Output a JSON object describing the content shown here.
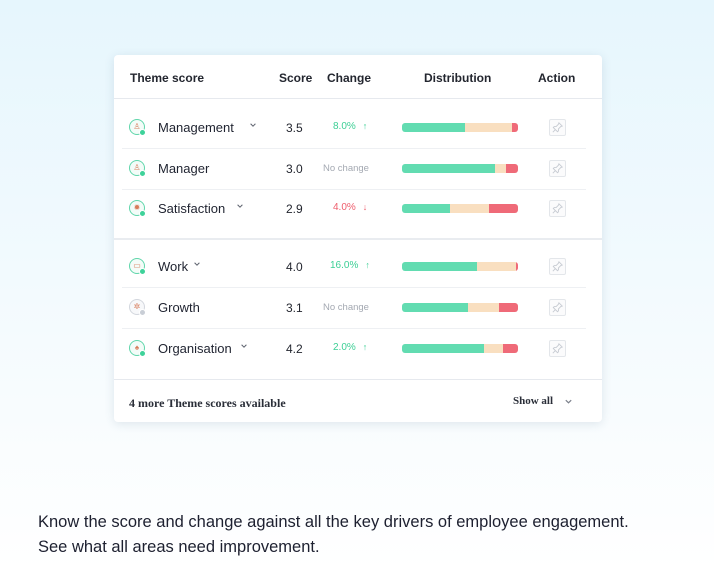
{
  "table": {
    "headers": {
      "theme": "Theme score",
      "score": "Score",
      "change": "Change",
      "distribution": "Distribution",
      "action": "Action"
    },
    "rows": [
      {
        "name": "Management",
        "score": "3.5",
        "change": "8.0%",
        "direction": "up",
        "arrow": "↑",
        "expandable": true,
        "icon": "people-icon",
        "distribution": {
          "positive": 0.54,
          "neutral": 0.41,
          "negative": 0.05
        }
      },
      {
        "name": "Manager",
        "score": "3.0",
        "change": "No change",
        "direction": "none",
        "arrow": "",
        "expandable": false,
        "icon": "person-icon",
        "distribution": {
          "positive": 0.8,
          "neutral": 0.1,
          "negative": 0.1
        }
      },
      {
        "name": "Satisfaction",
        "score": "2.9",
        "change": "4.0%",
        "direction": "down",
        "arrow": "↓",
        "expandable": true,
        "icon": "smiley-icon",
        "distribution": {
          "positive": 0.41,
          "neutral": 0.34,
          "negative": 0.25
        }
      },
      {
        "name": "Work",
        "score": "4.0",
        "change": "16.0%",
        "direction": "up",
        "arrow": "↑",
        "expandable": true,
        "icon": "briefcase-icon",
        "distribution": {
          "positive": 0.65,
          "neutral": 0.33,
          "negative": 0.02
        }
      },
      {
        "name": "Growth",
        "score": "3.1",
        "change": "No change",
        "direction": "none",
        "arrow": "",
        "expandable": false,
        "icon": "gear-icon",
        "distribution": {
          "positive": 0.57,
          "neutral": 0.27,
          "negative": 0.16
        }
      },
      {
        "name": "Organisation",
        "score": "4.2",
        "change": "2.0%",
        "direction": "up",
        "arrow": "↑",
        "expandable": true,
        "icon": "building-icon",
        "distribution": {
          "positive": 0.71,
          "neutral": 0.16,
          "negative": 0.13
        }
      }
    ]
  },
  "footer": {
    "more_text": "4 more Theme scores available",
    "show_all": "Show all"
  },
  "caption": "Know the score and change against all the key drivers of employee engagement. See what all areas need improvement.",
  "colors": {
    "positive": "#62dcb1",
    "neutral": "#f9dfc0",
    "negative": "#ef6a78",
    "up": "#3ccf95",
    "down": "#ee5d6c",
    "none": "#a4a9b2"
  }
}
